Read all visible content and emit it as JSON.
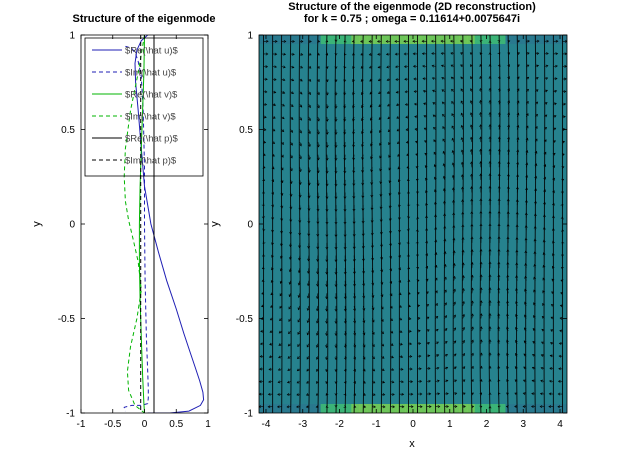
{
  "chart_data": [
    {
      "type": "line",
      "title": "Structure of the eigenmode",
      "xlabel": "",
      "ylabel": "y",
      "xlim": [
        -1,
        1
      ],
      "ylim": [
        -1,
        1
      ],
      "xticks": [
        "-1",
        "-0.5",
        "0",
        "0.5",
        "1"
      ],
      "yticks": [
        "-1",
        "-0.5",
        "0",
        "0.5",
        "1"
      ],
      "grid": false,
      "legend": "top-left",
      "series": [
        {
          "name": "$Re(\\hat u)$",
          "color": "#1f1fb4",
          "dash": "solid",
          "x": [
            0.05,
            -0.05,
            -0.12,
            -0.15,
            -0.14,
            -0.1,
            -0.05,
            0.0,
            0.1,
            0.22,
            0.35,
            0.5,
            0.62,
            0.72,
            0.8,
            0.87,
            0.92,
            0.93,
            0.88,
            0.7,
            0.4,
            0.05
          ],
          "y": [
            1.0,
            0.97,
            0.92,
            0.85,
            0.75,
            0.6,
            0.4,
            0.2,
            0.0,
            -0.15,
            -0.3,
            -0.45,
            -0.58,
            -0.68,
            -0.76,
            -0.83,
            -0.89,
            -0.93,
            -0.96,
            -0.99,
            -1.0,
            -1.0
          ]
        },
        {
          "name": "$Im(\\hat u)$",
          "color": "#1f1fb4",
          "dash": "dashed",
          "x": [
            -0.3,
            -0.2,
            -0.14,
            -0.1,
            -0.05,
            -0.02,
            0.0,
            0.0,
            0.01,
            0.03,
            0.05,
            0.06,
            0.06,
            0.05,
            -0.05,
            -0.2,
            -0.32,
            -0.3
          ],
          "y": [
            0.94,
            0.93,
            0.9,
            0.86,
            0.78,
            0.6,
            0.3,
            0.0,
            -0.3,
            -0.6,
            -0.78,
            -0.87,
            -0.92,
            -0.95,
            -0.96,
            -0.96,
            -0.97,
            -0.99
          ]
        },
        {
          "name": "$Re(\\hat v)$",
          "color": "#00b400",
          "dash": "solid",
          "x": [
            0.0,
            -0.01,
            -0.03,
            -0.05,
            -0.07,
            -0.08,
            -0.08,
            -0.07,
            -0.05,
            -0.03,
            -0.01,
            0.0
          ],
          "y": [
            1.0,
            0.8,
            0.6,
            0.4,
            0.2,
            0.0,
            -0.2,
            -0.4,
            -0.6,
            -0.8,
            -0.95,
            -1.0
          ]
        },
        {
          "name": "$Im(\\hat v)$",
          "color": "#00b400",
          "dash": "dashed",
          "x": [
            0.0,
            -0.1,
            -0.22,
            -0.3,
            -0.32,
            -0.3,
            -0.25,
            -0.18,
            -0.1,
            -0.05,
            -0.12,
            -0.22,
            -0.27,
            -0.25,
            -0.15,
            0.0
          ],
          "y": [
            1.0,
            0.8,
            0.6,
            0.4,
            0.25,
            0.12,
            0.02,
            -0.08,
            -0.2,
            -0.35,
            -0.5,
            -0.65,
            -0.78,
            -0.88,
            -0.96,
            -1.0
          ]
        },
        {
          "name": "$Re(\\hat p)$",
          "color": "#000000",
          "dash": "solid",
          "x": [
            0.15,
            0.15
          ],
          "y": [
            1.0,
            -1.0
          ]
        },
        {
          "name": "$Im(\\hat p)$",
          "color": "#000000",
          "dash": "dashed",
          "x": [
            -0.06,
            -0.06
          ],
          "y": [
            1.0,
            -1.0
          ]
        }
      ]
    },
    {
      "type": "heatmap",
      "title": "Structure of the eigenmode (2D reconstruction)",
      "subtitle": "for k = 0.75 ; omega = 0.11614+0.0075647i",
      "xlabel": "x",
      "ylabel": "y",
      "xlim": [
        -4.19,
        4.19
      ],
      "ylim": [
        -1,
        1
      ],
      "xticks": [
        "-4",
        "-3",
        "-2",
        "-1",
        "0",
        "1",
        "2",
        "3",
        "4"
      ],
      "yticks": [
        "-1",
        "-0.5",
        "0",
        "0.5",
        "1"
      ],
      "grid": false,
      "fill_color": "#26828e",
      "edge_colors": [
        "#3fbc73",
        "#7ad151",
        "#2a788e"
      ],
      "arrow_color": "#000000",
      "contour_color": "#000000"
    }
  ]
}
